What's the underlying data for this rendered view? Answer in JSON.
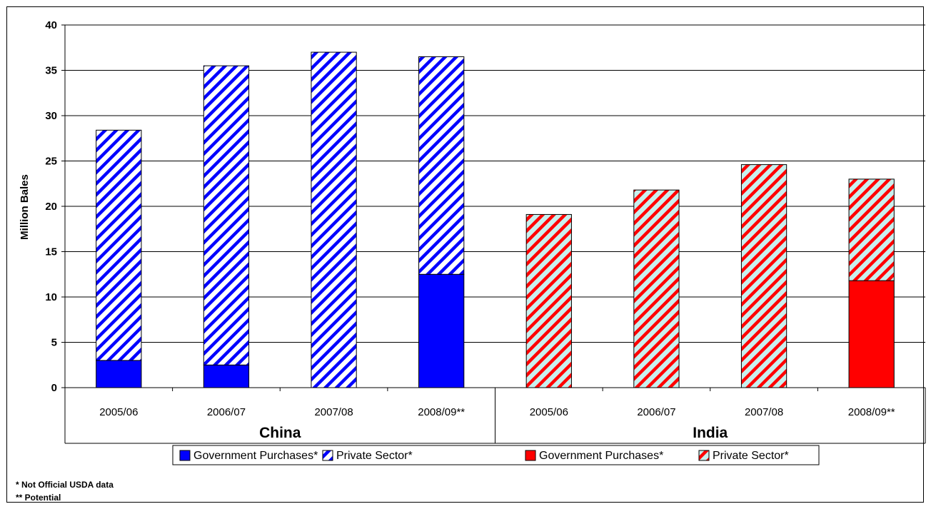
{
  "chart_data": {
    "type": "bar",
    "stacked": true,
    "ylabel": "Million Bales",
    "ylim": [
      0,
      40
    ],
    "yticks": [
      0,
      5,
      10,
      15,
      20,
      25,
      30,
      35,
      40
    ],
    "grid": true,
    "groups": [
      {
        "name": "China",
        "categories": [
          "2005/06",
          "2006/07",
          "2007/08",
          "2008/09**"
        ],
        "series": [
          {
            "name": "Government Purchases*",
            "values": [
              3.0,
              2.5,
              0,
              12.5
            ],
            "color": "#0000FF",
            "fill": "solid"
          },
          {
            "name": "Private Sector*",
            "values": [
              25.4,
              33.0,
              37.0,
              24.0
            ],
            "color": "#0000FF",
            "fill": "hatched"
          }
        ]
      },
      {
        "name": "India",
        "categories": [
          "2005/06",
          "2006/07",
          "2007/08",
          "2008/09**"
        ],
        "series": [
          {
            "name": "Government Purchases*",
            "values": [
              0,
              0,
              0,
              11.8
            ],
            "color": "#FF0000",
            "fill": "solid"
          },
          {
            "name": "Private Sector*",
            "values": [
              19.1,
              21.8,
              24.6,
              11.2
            ],
            "color": "#FF0000",
            "fill": "hatched"
          }
        ]
      }
    ],
    "legend_position": "bottom"
  },
  "footnotes": [
    "* Not Official USDA data",
    "** Potential"
  ]
}
